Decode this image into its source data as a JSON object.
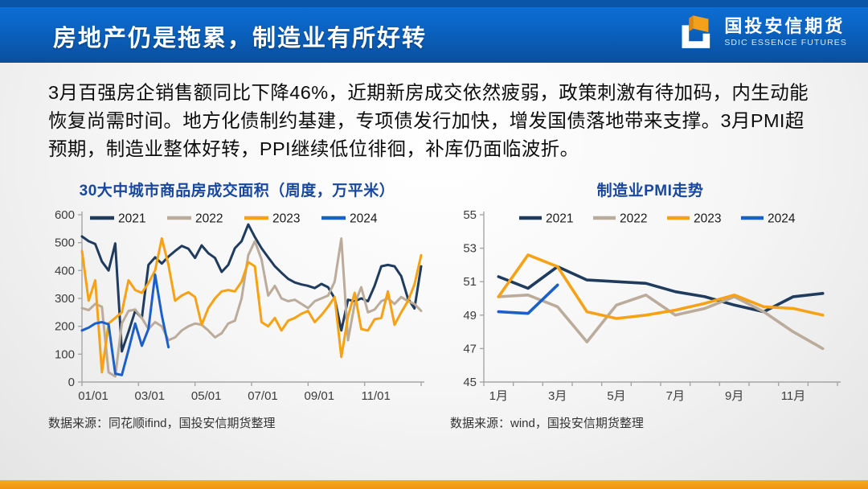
{
  "header": {
    "title": "房地产仍是拖累，制造业有所好转",
    "logo_cn": "国投安信期货",
    "logo_en": "SDIC ESSENCE FUTURES"
  },
  "body_text": "3月百强房企销售额同比下降46%，近期新房成交依然疲弱，政策刺激有待加码，内生动能恢复尚需时间。地方化债制约基建，专项债发行加快，增发国债落地带来支撑。3月PMI超预期，制造业整体好转，PPI继续低位徘徊，补库仍面临波折。",
  "colors": {
    "header_blue_top": "#0c71da",
    "header_blue_bottom": "#094f9e",
    "header_strip": "#0a55a8",
    "chart_title_blue": "#17479e",
    "footer_orange": "#f2990f",
    "logo_orange": "#f5a01a",
    "series_2021": "#1f3b5e",
    "series_2022": "#bbab9b",
    "series_2023": "#f7a216",
    "series_2024": "#1b5fc8",
    "axis_gray": "#a6a6a6",
    "tick_text": "#3c3c3c"
  },
  "chart_data": [
    {
      "type": "line",
      "title": "30大中城市商品房成交面积（周度，万平米）",
      "ylabel": "万平米",
      "ylim": [
        0,
        600
      ],
      "yticks": [
        0,
        100,
        200,
        300,
        400,
        500,
        600
      ],
      "xtick_labels": [
        "01/01",
        "03/01",
        "05/01",
        "07/01",
        "09/01",
        "11/01"
      ],
      "legend_position": "top",
      "grid": false,
      "source": "数据来源：同花顺ifind，国投安信期货整理",
      "series": [
        {
          "name": "2021",
          "color_key": "series_2021",
          "values": [
            522,
            505,
            495,
            432,
            400,
            497,
            110,
            180,
            255,
            230,
            420,
            447,
            425,
            450,
            470,
            488,
            478,
            445,
            490,
            462,
            445,
            395,
            420,
            480,
            505,
            565,
            520,
            480,
            447,
            415,
            392,
            370,
            357,
            350,
            345,
            337,
            352,
            340,
            300,
            185,
            295,
            290,
            300,
            290,
            345,
            415,
            420,
            415,
            380,
            300,
            264,
            415
          ]
        },
        {
          "name": "2022",
          "color_key": "series_2022",
          "values": [
            265,
            258,
            280,
            270,
            35,
            20,
            210,
            255,
            260,
            230,
            190,
            215,
            200,
            150,
            160,
            185,
            200,
            210,
            205,
            185,
            160,
            175,
            210,
            220,
            300,
            455,
            505,
            440,
            310,
            345,
            300,
            290,
            295,
            280,
            265,
            290,
            300,
            310,
            360,
            515,
            150,
            280,
            340,
            250,
            260,
            290,
            300,
            280,
            305,
            290,
            280,
            255
          ]
        },
        {
          "name": "2023",
          "color_key": "series_2023",
          "values": [
            470,
            292,
            365,
            35,
            210,
            230,
            250,
            365,
            330,
            320,
            355,
            400,
            515,
            420,
            292,
            310,
            322,
            305,
            205,
            265,
            300,
            325,
            330,
            325,
            360,
            430,
            415,
            215,
            200,
            230,
            185,
            220,
            230,
            245,
            255,
            215,
            240,
            270,
            305,
            90,
            235,
            320,
            190,
            185,
            225,
            230,
            325,
            205,
            250,
            290,
            350,
            455
          ]
        },
        {
          "name": "2024",
          "color_key": "series_2024",
          "values": [
            185,
            195,
            210,
            215,
            207,
            30,
            25,
            115,
            210,
            130,
            190,
            385,
            240,
            125
          ]
        }
      ]
    },
    {
      "type": "line",
      "title": "制造业PMI走势",
      "ylabel": "PMI",
      "ylim": [
        45,
        55
      ],
      "yticks": [
        45,
        47,
        49,
        51,
        53,
        55
      ],
      "xtick_labels": [
        "1月",
        "3月",
        "5月",
        "7月",
        "9月",
        "11月"
      ],
      "legend_position": "top",
      "grid": false,
      "source": "数据来源：wind，国投安信期货整理",
      "series": [
        {
          "name": "2021",
          "color_key": "series_2021",
          "values": [
            51.3,
            50.6,
            51.9,
            51.1,
            51.0,
            50.9,
            50.4,
            50.1,
            49.6,
            49.2,
            50.1,
            50.3
          ]
        },
        {
          "name": "2022",
          "color_key": "series_2022",
          "values": [
            50.1,
            50.2,
            49.5,
            47.4,
            49.6,
            50.2,
            49.0,
            49.4,
            50.1,
            49.2,
            48.0,
            47.0
          ]
        },
        {
          "name": "2023",
          "color_key": "series_2023",
          "values": [
            50.1,
            52.6,
            51.9,
            49.2,
            48.8,
            49.0,
            49.3,
            49.7,
            50.2,
            49.5,
            49.4,
            49.0
          ]
        },
        {
          "name": "2024",
          "color_key": "series_2024",
          "values": [
            49.2,
            49.1,
            50.8
          ]
        }
      ]
    }
  ]
}
